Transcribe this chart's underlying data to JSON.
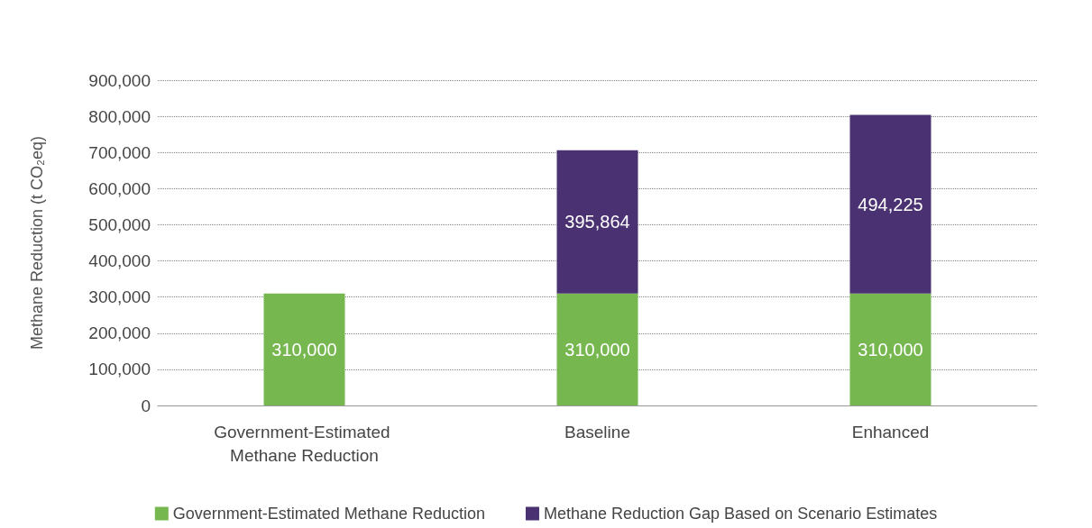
{
  "chart_data": {
    "type": "bar",
    "ylabel": "Methane Reduction (t CO₂eq)",
    "categories": [
      "Government-Estimated Methane Reduction",
      "Baseline",
      "Enhanced"
    ],
    "series": [
      {
        "name": "Government-Estimated Methane Reduction",
        "color": "#77b750",
        "values": [
          310000,
          310000,
          310000
        ],
        "value_labels": [
          "310,000",
          "310,000",
          "310,000"
        ]
      },
      {
        "name": "Methane Reduction Gap Based on Scenario Estimates",
        "color": "#4a3272",
        "values": [
          null,
          395864,
          494225
        ],
        "value_labels": [
          null,
          "395,864",
          "494,225"
        ]
      }
    ],
    "stacked": true,
    "ylim": [
      0,
      900000
    ],
    "yticks": [
      {
        "value": 0,
        "label": "0"
      },
      {
        "value": 100000,
        "label": "100,000"
      },
      {
        "value": 200000,
        "label": "200,000"
      },
      {
        "value": 300000,
        "label": "300,000"
      },
      {
        "value": 400000,
        "label": "400,000"
      },
      {
        "value": 500000,
        "label": "500,000"
      },
      {
        "value": 600000,
        "label": "600,000"
      },
      {
        "value": 700000,
        "label": "700,000"
      },
      {
        "value": 800000,
        "label": "800,000"
      },
      {
        "value": 900000,
        "label": "900,000"
      }
    ],
    "grid": "y",
    "legend": "bottom"
  }
}
